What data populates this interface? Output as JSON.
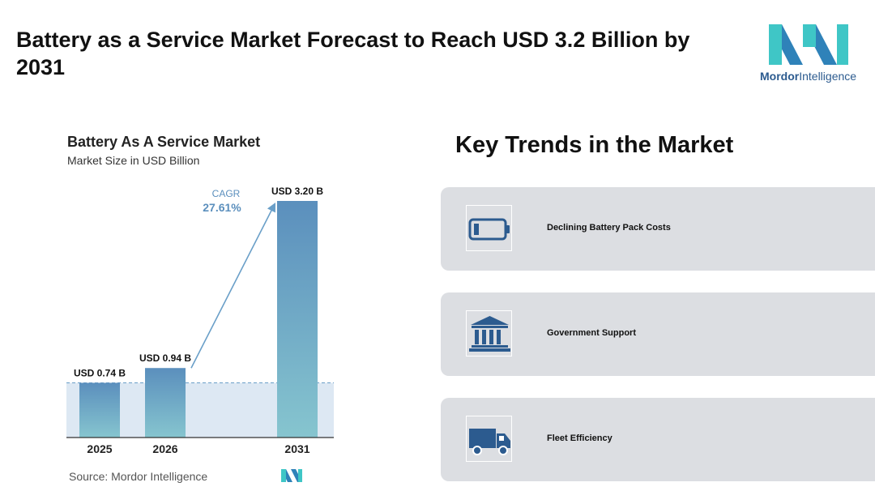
{
  "headline": "Battery as a Service Market Forecast to Reach USD 3.2 Billion by 2031",
  "logo": {
    "brand_bold": "Mordor",
    "brand_light": "Intelligence"
  },
  "chart_data": {
    "type": "bar",
    "title": "Battery As A Service Market",
    "subtitle": "Market Size in USD Billion",
    "categories": [
      "2025",
      "2026",
      "2031"
    ],
    "values": [
      0.74,
      0.94,
      3.2
    ],
    "data_labels": [
      "USD 0.74 B",
      "USD 0.94 B",
      "USD 3.20 B"
    ],
    "cagr_label": "CAGR",
    "cagr_value": "27.61%",
    "ylim": [
      0,
      3.2
    ],
    "grid": false,
    "colors": {
      "bar_top": "#5b8fbd",
      "bar_bottom": "#86c5cf",
      "band": "#dde8f3",
      "arrow": "#6a9fc8",
      "cagr_text": "#5b8fbd"
    }
  },
  "source": "Source: Mordor Intelligence",
  "trends": {
    "title": "Key Trends in the Market",
    "items": [
      {
        "label": "Declining Battery Pack Costs",
        "icon": "battery-icon"
      },
      {
        "label": "Government Support",
        "icon": "government-building-icon"
      },
      {
        "label": "Fleet Efficiency",
        "icon": "truck-icon"
      }
    ]
  },
  "colors": {
    "card_bg": "#dcdee2",
    "icon_blue": "#2c5b8f",
    "brand_dark": "#2c5b8f",
    "brand_light": "#3fc6c6"
  }
}
